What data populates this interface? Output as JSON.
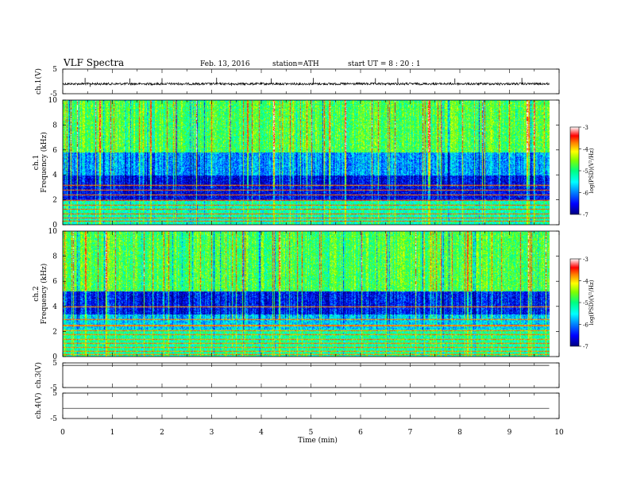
{
  "header": {
    "title": "VLF  Spectra",
    "date": "Feb. 13, 2016",
    "station": "station=ATH",
    "start": "start  UT  =   8  : 20 : 1"
  },
  "colorbar": {
    "label": "log(PSD)(V²/Hz)",
    "ticks": [
      "-3",
      "-4",
      "-5",
      "-6",
      "-7"
    ],
    "colors": [
      "#000080",
      "#0000ff",
      "#0080ff",
      "#00ffff",
      "#00ff80",
      "#80ff00",
      "#ffff00",
      "#ff8000",
      "#ff0000",
      "#ffffff"
    ]
  },
  "chart_data": [
    {
      "type": "line",
      "name": "ch1-time-series",
      "ylabel": "ch.1(V)",
      "yticks": [
        "5",
        "-5"
      ],
      "ylim": [
        -5,
        5
      ],
      "xlim": [
        0,
        9.8
      ],
      "baseline": -1.0,
      "spikes": [
        [
          0.45,
          1.4
        ],
        [
          0.55,
          -2.2
        ],
        [
          1.35,
          1.2
        ],
        [
          1.8,
          -1.6
        ],
        [
          2.0,
          1.3
        ],
        [
          3.1,
          1.5
        ],
        [
          3.4,
          -1.8
        ],
        [
          4.2,
          1.2
        ],
        [
          5.05,
          1.4
        ],
        [
          5.7,
          -1.5
        ],
        [
          6.3,
          1.3
        ],
        [
          6.75,
          1.3
        ],
        [
          7.9,
          1.2
        ],
        [
          8.8,
          -1.7
        ],
        [
          9.25,
          1.4
        ],
        [
          9.6,
          -1.3
        ]
      ]
    },
    {
      "type": "heatmap",
      "name": "ch1-spectrogram",
      "ylabel": "Frequency  (kHz)",
      "ylabel2": "ch.1",
      "yticks": [
        "10",
        "8",
        "6",
        "4",
        "2",
        "0"
      ],
      "ylim": [
        0,
        10
      ],
      "xlim": [
        0,
        9.8
      ],
      "clim": [
        -7,
        -3
      ],
      "bands": [
        {
          "from": 0,
          "to": 2,
          "level": -5.4
        },
        {
          "from": 2,
          "to": 4,
          "level": -6.6
        },
        {
          "from": 4,
          "to": 5.8,
          "level": -6.0
        },
        {
          "from": 5.8,
          "to": 10,
          "level": -5.0
        }
      ],
      "lines": [
        0.3,
        0.55,
        0.9,
        1.25,
        1.6,
        2.0,
        2.4,
        2.8,
        3.2
      ],
      "line_level": -3.8
    },
    {
      "type": "heatmap",
      "name": "ch2-spectrogram",
      "ylabel": "Frequency  (kHz)",
      "ylabel2": "ch.2",
      "yticks": [
        "10",
        "8",
        "6",
        "4",
        "2",
        "0"
      ],
      "ylim": [
        0,
        10
      ],
      "xlim": [
        0,
        9.8
      ],
      "clim": [
        -7,
        -3
      ],
      "bands": [
        {
          "from": 0,
          "to": 2.2,
          "level": -5.3
        },
        {
          "from": 2.2,
          "to": 3.4,
          "level": -5.8
        },
        {
          "from": 3.4,
          "to": 5.2,
          "level": -6.5
        },
        {
          "from": 5.2,
          "to": 10,
          "level": -5.0
        }
      ],
      "lines": [
        0.2,
        0.45,
        0.75,
        1.1,
        1.4,
        1.8,
        2.1,
        2.5,
        3.0,
        4.0
      ],
      "line_level": -3.9
    },
    {
      "type": "line",
      "name": "ch3-time-series",
      "ylabel": "ch.3(V)",
      "yticks": [
        "5",
        "-5"
      ],
      "ylim": [
        -5,
        5
      ],
      "xlim": [
        0,
        9.8
      ],
      "baseline": 4.0,
      "spikes": []
    },
    {
      "type": "line",
      "name": "ch4-time-series",
      "ylabel": "ch.4(V)",
      "yticks": [
        "5",
        "-5"
      ],
      "ylim": [
        -5,
        5
      ],
      "xlim": [
        0,
        9.8
      ],
      "baseline": -1.0,
      "spikes": []
    }
  ],
  "xaxis": {
    "label": "Time  (min)",
    "ticks": [
      "0",
      "1",
      "2",
      "3",
      "4",
      "5",
      "6",
      "7",
      "8",
      "9",
      "10"
    ],
    "xlim": [
      0,
      10
    ]
  }
}
